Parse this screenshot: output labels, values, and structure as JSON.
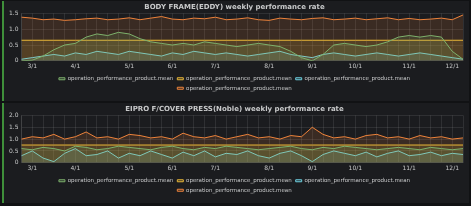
{
  "chart_data": [
    {
      "type": "line",
      "title": "BODY FRAME(EDDY) weekly performance rate",
      "categories": [
        null,
        "3/1",
        null,
        null,
        null,
        "4/1",
        null,
        null,
        null,
        null,
        "5/1",
        null,
        null,
        null,
        "6/1",
        null,
        null,
        null,
        "7/1",
        null,
        null,
        null,
        null,
        "8/1",
        null,
        null,
        null,
        "9/1",
        null,
        null,
        null,
        "10/1",
        null,
        null,
        null,
        null,
        "11/1",
        null,
        null,
        null,
        "12/1",
        null
      ],
      "series": [
        {
          "name": "operation_performance_product.mean",
          "color": "#7eb26d",
          "values": [
            0,
            0.02,
            0.15,
            0.35,
            0.5,
            0.55,
            0.75,
            0.85,
            0.8,
            0.9,
            0.85,
            0.7,
            0.6,
            0.55,
            0.5,
            0.55,
            0.5,
            0.6,
            0.55,
            0.5,
            0.45,
            0.5,
            0.55,
            0.5,
            0.45,
            0.3,
            0.1,
            0.0,
            0.2,
            0.5,
            0.55,
            0.5,
            0.45,
            0.5,
            0.6,
            0.75,
            0.8,
            0.75,
            0.8,
            0.75,
            0.3,
            0.05
          ]
        },
        {
          "name": "operation_performance_product.mean",
          "color": "#eab839",
          "values": [
            0.65,
            0.65,
            0.65,
            0.65,
            0.65,
            0.65,
            0.65,
            0.65,
            0.65,
            0.65,
            0.65,
            0.65,
            0.65,
            0.65,
            0.65,
            0.65,
            0.65,
            0.65,
            0.65,
            0.65,
            0.65,
            0.65,
            0.65,
            0.65,
            0.65,
            0.65,
            0.65,
            0.65,
            0.65,
            0.65,
            0.65,
            0.65,
            0.65,
            0.65,
            0.65,
            0.65,
            0.65,
            0.65,
            0.65,
            0.65,
            0.65,
            0.65
          ]
        },
        {
          "name": "operation_performance_product.mean",
          "color": "#6ed0e0",
          "values": [
            0.05,
            0.1,
            0.15,
            0.2,
            0.15,
            0.25,
            0.2,
            0.3,
            0.25,
            0.2,
            0.3,
            0.25,
            0.2,
            0.15,
            0.25,
            0.2,
            0.3,
            0.25,
            0.2,
            0.25,
            0.2,
            0.15,
            0.2,
            0.25,
            0.3,
            0.2,
            0.15,
            0.1,
            0.2,
            0.25,
            0.2,
            0.15,
            0.2,
            0.25,
            0.2,
            0.15,
            0.2,
            0.25,
            0.2,
            0.15,
            0.1,
            0.05
          ]
        },
        {
          "name": "operation_performance_product.mean",
          "color": "#ef843c",
          "values": [
            1.38,
            1.35,
            1.3,
            1.32,
            1.28,
            1.3,
            1.33,
            1.35,
            1.3,
            1.32,
            1.36,
            1.3,
            1.35,
            1.4,
            1.32,
            1.3,
            1.35,
            1.33,
            1.38,
            1.3,
            1.32,
            1.36,
            1.3,
            1.28,
            1.35,
            1.32,
            1.3,
            1.34,
            1.36,
            1.3,
            1.32,
            1.35,
            1.3,
            1.33,
            1.36,
            1.3,
            1.34,
            1.3,
            1.32,
            1.35,
            1.3,
            1.45
          ]
        }
      ],
      "ylim": [
        0,
        1.5
      ],
      "yticks": [
        0,
        0.5,
        {
          "value": 1,
          "label": "1.0"
        },
        1.5
      ],
      "grid": true,
      "legend": "bottom"
    },
    {
      "type": "line",
      "title": "EIPRO F/COVER PRESS(Noble) weekly performance rate",
      "categories": [
        null,
        "3/1",
        null,
        null,
        null,
        "4/1",
        null,
        null,
        null,
        null,
        "5/1",
        null,
        null,
        null,
        "6/1",
        null,
        null,
        null,
        "7/1",
        null,
        null,
        null,
        null,
        "8/1",
        null,
        null,
        null,
        "9/1",
        null,
        null,
        null,
        "10/1",
        null,
        null,
        null,
        null,
        "11/1",
        null,
        null,
        null,
        "12/1",
        null
      ],
      "series": [
        {
          "name": "operation_performance_product.mean",
          "color": "#7eb26d",
          "values": [
            0.6,
            0.55,
            0.65,
            0.6,
            0.5,
            0.7,
            0.65,
            0.55,
            0.6,
            0.7,
            0.65,
            0.6,
            0.55,
            0.65,
            0.7,
            0.6,
            0.55,
            0.65,
            0.6,
            0.7,
            0.65,
            0.6,
            0.55,
            0.6,
            0.65,
            0.7,
            0.6,
            0.55,
            0.65,
            0.6,
            0.7,
            0.65,
            0.6,
            0.55,
            0.6,
            0.65,
            0.6,
            0.55,
            0.65,
            0.6,
            0.55,
            0.6
          ]
        },
        {
          "name": "operation_performance_product.mean",
          "color": "#eab839",
          "values": [
            0.75,
            0.75,
            0.75,
            0.75,
            0.75,
            0.75,
            0.75,
            0.75,
            0.75,
            0.75,
            0.75,
            0.75,
            0.75,
            0.75,
            0.75,
            0.75,
            0.75,
            0.75,
            0.75,
            0.75,
            0.75,
            0.75,
            0.75,
            0.75,
            0.75,
            0.75,
            0.75,
            0.75,
            0.75,
            0.75,
            0.75,
            0.75,
            0.75,
            0.75,
            0.75,
            0.75,
            0.75,
            0.75,
            0.75,
            0.75,
            0.75,
            0.75
          ]
        },
        {
          "name": "operation_performance_product.mean",
          "color": "#6ed0e0",
          "values": [
            0.3,
            0.5,
            0.2,
            0.05,
            0.4,
            0.6,
            0.3,
            0.35,
            0.5,
            0.2,
            0.4,
            0.3,
            0.5,
            0.35,
            0.2,
            0.45,
            0.3,
            0.5,
            0.25,
            0.4,
            0.35,
            0.5,
            0.3,
            0.2,
            0.4,
            0.5,
            0.3,
            0.05,
            0.35,
            0.5,
            0.4,
            0.3,
            0.45,
            0.25,
            0.4,
            0.5,
            0.3,
            0.35,
            0.45,
            0.3,
            0.4,
            0.35
          ]
        },
        {
          "name": "operation_performance_product.mean",
          "color": "#ef843c",
          "values": [
            1.0,
            1.1,
            1.05,
            1.2,
            1.0,
            1.1,
            1.3,
            1.05,
            1.1,
            1.0,
            1.2,
            1.15,
            1.05,
            1.1,
            1.0,
            1.25,
            1.1,
            1.05,
            1.15,
            1.0,
            1.1,
            1.2,
            1.05,
            1.1,
            1.0,
            1.15,
            1.1,
            1.5,
            1.2,
            1.05,
            1.1,
            1.0,
            1.15,
            1.2,
            1.05,
            1.1,
            1.0,
            1.15,
            1.05,
            1.1,
            1.0,
            1.05
          ]
        }
      ],
      "ylim": [
        0,
        2
      ],
      "yticks": [
        0,
        0.5,
        {
          "value": 1,
          "label": "1.0"
        },
        1.5,
        {
          "value": 2,
          "label": "2.0"
        }
      ],
      "grid": true,
      "legend": "bottom"
    }
  ]
}
